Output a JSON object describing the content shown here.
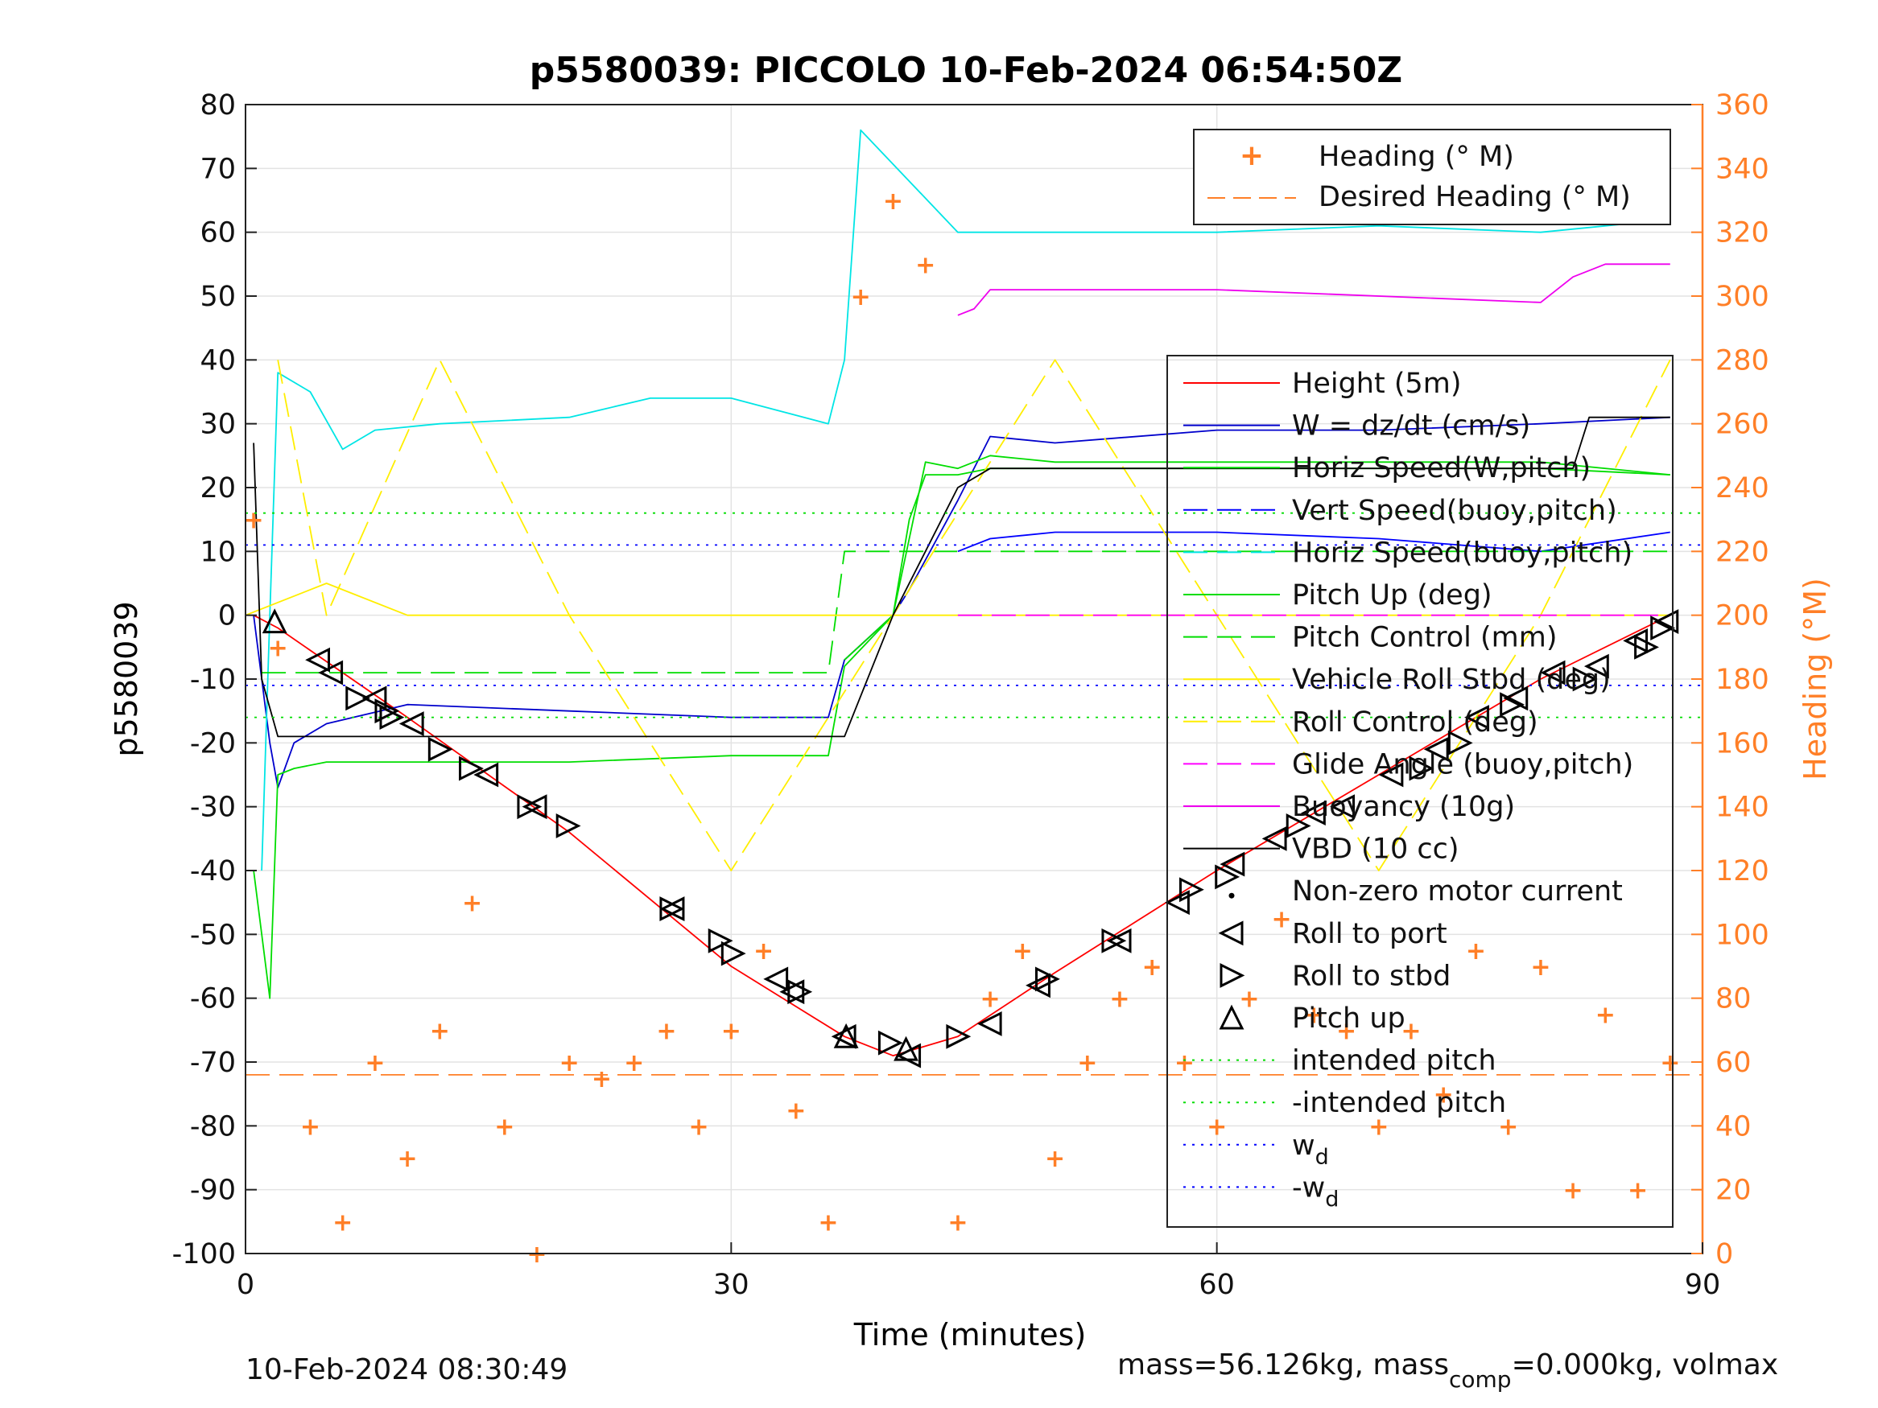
{
  "chart_data": {
    "type": "line",
    "title": "p5580039: PICCOLO 10-Feb-2024 06:54:50Z",
    "xlabel": "Time (minutes)",
    "ylabel": "p5580039",
    "y2label": "Heading (°M)",
    "xlim": [
      0,
      90
    ],
    "ylim": [
      -100,
      80
    ],
    "y2lim": [
      0,
      360
    ],
    "xticks": [
      0,
      30,
      60,
      90
    ],
    "yticks": [
      80,
      70,
      60,
      50,
      40,
      30,
      20,
      10,
      0,
      -10,
      -20,
      -30,
      -40,
      -50,
      -60,
      -70,
      -80,
      -90,
      -100
    ],
    "y2ticks": [
      360,
      340,
      320,
      300,
      280,
      260,
      240,
      220,
      200,
      180,
      160,
      140,
      120,
      100,
      80,
      60,
      40,
      20,
      0
    ],
    "grid": true,
    "colors": {
      "height": "#ff0000",
      "w": "#0000cc",
      "horiz_w": "#00dd00",
      "vert_buoy": "#0000ff",
      "horiz_buoy": "#00e5e5",
      "pitch": "#00dd00",
      "roll": "#ffee00",
      "glide": "#ff00ff",
      "buoyancy": "#ee00ee",
      "vbd": "#000000",
      "heading": "#ff7f27",
      "axis2": "#ff7f27"
    },
    "legend_heading": {
      "placement": "top-right",
      "entries": [
        "Heading (° M)",
        "Desired Heading (° M)"
      ]
    },
    "legend_main": {
      "placement": "right",
      "entries": [
        "Height (5m)",
        "W = dz/dt (cm/s)",
        "Horiz Speed(W,pitch)",
        "Vert Speed(buoy,pitch)",
        "Horiz Speed(buoy,pitch)",
        "Pitch Up (deg)",
        "Pitch Control (mm)",
        "Vehicle Roll Stbd (deg)",
        "Roll Control (deg)",
        "Glide Angle (buoy,pitch)",
        "Buoyancy (10g)",
        "VBD (10 cc)",
        "Non-zero motor current",
        "Roll to port",
        "Roll to stbd",
        "Pitch up",
        "intended pitch",
        "-intended pitch",
        "w_d",
        "-w_d"
      ]
    },
    "series": [
      {
        "name": "Height (5m)",
        "x": [
          0.5,
          2,
          10,
          20,
          30,
          37,
          40,
          44,
          50,
          60,
          70,
          80,
          88
        ],
        "y": [
          0,
          -2,
          -16,
          -34,
          -55,
          -66,
          -69,
          -66,
          -56,
          -40,
          -25,
          -10,
          0
        ]
      },
      {
        "name": "W = dz/dt (cm/s)",
        "x": [
          0.5,
          1.5,
          2,
          3,
          5,
          10,
          20,
          30,
          36,
          37,
          40,
          41,
          44,
          46,
          50,
          60,
          70,
          80,
          88
        ],
        "y": [
          0,
          -20,
          -27,
          -20,
          -17,
          -14,
          -15,
          -16,
          -16,
          -7,
          0,
          4,
          18,
          28,
          27,
          29,
          29,
          30,
          31
        ]
      },
      {
        "name": "Horiz Speed(W,pitch)",
        "x": [
          37,
          40,
          41,
          42,
          44,
          46,
          50,
          60,
          70,
          80,
          88
        ],
        "y": [
          -7,
          0,
          15,
          22,
          22,
          23,
          23,
          23,
          23,
          23,
          22
        ]
      },
      {
        "name": "Vert Speed(buoy,pitch)",
        "x": [
          44,
          46,
          50,
          60,
          70,
          80,
          88
        ],
        "y": [
          10,
          12,
          13,
          13,
          12,
          10,
          13
        ]
      },
      {
        "name": "Horiz Speed(buoy,pitch)",
        "x": [
          1,
          1.5,
          2,
          4,
          6,
          8,
          12,
          20,
          25,
          30,
          36,
          37,
          38,
          44,
          46,
          60,
          70,
          80,
          88
        ],
        "y": [
          -40,
          0,
          38,
          35,
          26,
          29,
          30,
          31,
          34,
          34,
          30,
          40,
          76,
          60,
          60,
          60,
          61,
          60,
          62
        ]
      },
      {
        "name": "Pitch Up (deg)",
        "x": [
          0.5,
          1.5,
          2,
          3,
          5,
          10,
          20,
          30,
          36,
          37,
          40,
          42,
          44,
          46,
          50,
          60,
          70,
          80,
          88
        ],
        "y": [
          -40,
          -60,
          -25,
          -24,
          -23,
          -23,
          -23,
          -22,
          -22,
          -8,
          0,
          24,
          23,
          25,
          24,
          24,
          24,
          24,
          22
        ]
      },
      {
        "name": "Pitch Control (mm)",
        "x": [
          1,
          36,
          37,
          44,
          88
        ],
        "y": [
          -9,
          -9,
          10,
          10,
          10
        ]
      },
      {
        "name": "Vehicle Roll Stbd (deg)",
        "x": [
          0,
          5,
          10,
          20,
          30,
          40,
          50,
          60,
          70,
          80,
          88
        ],
        "y": [
          0,
          5,
          0,
          0,
          0,
          0,
          0,
          0,
          0,
          0,
          0
        ]
      },
      {
        "name": "Roll Control (deg)",
        "x": [
          2,
          5,
          12,
          20,
          30,
          40,
          50,
          60,
          70,
          80,
          88
        ],
        "y": [
          40,
          0,
          40,
          0,
          -40,
          0,
          40,
          0,
          -40,
          0,
          40
        ]
      },
      {
        "name": "Glide Angle (buoy,pitch)",
        "x": [
          44,
          88
        ],
        "y": [
          0,
          0
        ]
      },
      {
        "name": "Buoyancy (10g)",
        "x": [
          44,
          45,
          46,
          60,
          80,
          82,
          84,
          88
        ],
        "y": [
          47,
          48,
          51,
          51,
          49,
          53,
          55,
          55
        ]
      },
      {
        "name": "VBD (10 cc)",
        "x": [
          0.5,
          1,
          2,
          3,
          37,
          40,
          44,
          46,
          82,
          83,
          88
        ],
        "y": [
          27,
          -10,
          -19,
          -19,
          -19,
          0,
          20,
          23,
          23,
          31,
          31
        ]
      },
      {
        "name": "Heading (° M)",
        "x": [
          0.5,
          2,
          4,
          6,
          8,
          10,
          12,
          14,
          16,
          18,
          20,
          22,
          24,
          26,
          28,
          30,
          32,
          34,
          36,
          38,
          40,
          42,
          44,
          46,
          48,
          50,
          52,
          54,
          56,
          58,
          60,
          62,
          64,
          66,
          68,
          70,
          72,
          74,
          76,
          78,
          80,
          82,
          84,
          86,
          88
        ],
        "y": [
          230,
          190,
          40,
          10,
          60,
          30,
          70,
          110,
          40,
          0,
          60,
          55,
          60,
          70,
          40,
          70,
          95,
          45,
          10,
          300,
          330,
          310,
          10,
          80,
          95,
          30,
          60,
          80,
          90,
          60,
          40,
          80,
          105,
          75,
          70,
          40,
          70,
          50,
          95,
          40,
          90,
          20,
          75,
          20,
          60
        ]
      },
      {
        "name": "Desired Heading (° M)",
        "x": [
          0,
          90
        ],
        "y": [
          56,
          56
        ]
      },
      {
        "name": "intended pitch",
        "x": [
          0,
          90
        ],
        "y": [
          16,
          16
        ]
      },
      {
        "name": "-intended pitch",
        "x": [
          0,
          90
        ],
        "y": [
          -16,
          -16
        ]
      },
      {
        "name": "w_d",
        "x": [
          0,
          90
        ],
        "y": [
          11,
          11
        ]
      },
      {
        "name": "-w_d",
        "x": [
          0,
          90
        ],
        "y": [
          -11,
          -11
        ]
      }
    ],
    "markers": {
      "roll_to_port": {
        "x": [
          4.5,
          5.3,
          8.0,
          10.3,
          14.9,
          17.9,
          26.4,
          32.8,
          33.8,
          37.0,
          41.0,
          46.0,
          49.0,
          54.0,
          57.6,
          61.0,
          63.6,
          66.0,
          67.8,
          70.8,
          73.6,
          76.1,
          78.5,
          80.8,
          83.5,
          85.9,
          87.8
        ],
        "y": [
          -7,
          -9,
          -13,
          -17,
          -25,
          -30,
          -46,
          -57,
          -59,
          -66,
          -69,
          -64,
          -58,
          -51,
          -45,
          -39,
          -35,
          -31,
          -30,
          -25,
          -21,
          -16,
          -13,
          -9,
          -8,
          -4,
          -1
        ]
      },
      "roll_to_stbd": {
        "x": [
          6.9,
          8.7,
          9.0,
          12.0,
          13.9,
          17.5,
          19.9,
          26.3,
          29.3,
          30.1,
          34.2,
          39.8,
          44.0,
          49.5,
          53.6,
          58.4,
          60.6,
          65.0,
          72.6,
          75.0,
          78.2,
          82.7,
          86.5,
          87.5
        ],
        "y": [
          -13,
          -15,
          -16,
          -21,
          -24,
          -30,
          -33,
          -46,
          -51,
          -53,
          -59,
          -67,
          -66,
          -57,
          -51,
          -43,
          -41,
          -33,
          -24,
          -20,
          -14,
          -10,
          -5,
          -2
        ]
      },
      "pitch_up": {
        "x": [
          1.8,
          37.1,
          40.8
        ],
        "y": [
          -1,
          -66,
          -68
        ]
      }
    },
    "footer_left": "10-Feb-2024 08:30:49",
    "footer_right_prefix": "mass=56.126kg, mass",
    "footer_right_sub": "comp",
    "footer_right_suffix": "=0.000kg, volmax"
  }
}
